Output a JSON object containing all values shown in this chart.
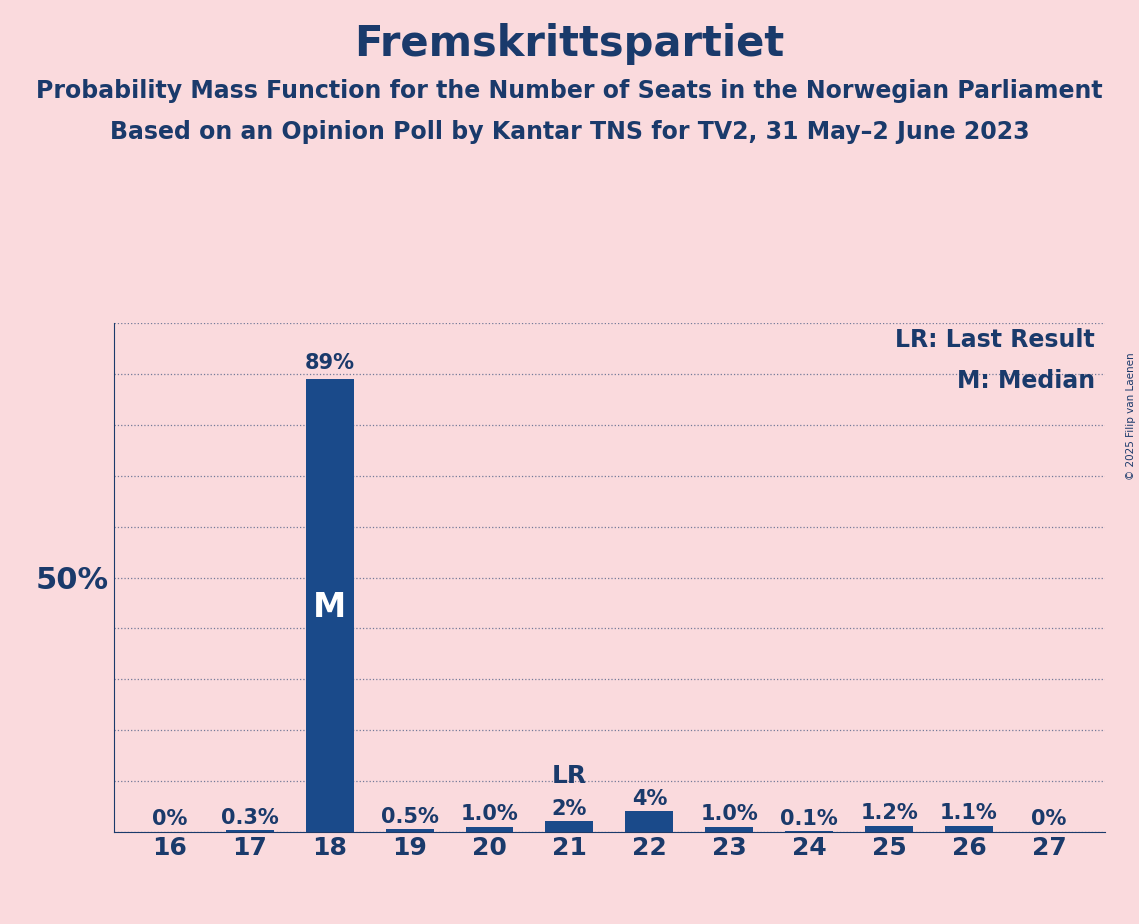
{
  "title": "Fremskrittspartiet",
  "subtitle1": "Probability Mass Function for the Number of Seats in the Norwegian Parliament",
  "subtitle2": "Based on an Opinion Poll by Kantar TNS for TV2, 31 May–2 June 2023",
  "copyright": "© 2025 Filip van Laenen",
  "categories": [
    16,
    17,
    18,
    19,
    20,
    21,
    22,
    23,
    24,
    25,
    26,
    27
  ],
  "values": [
    0.0,
    0.3,
    89.0,
    0.5,
    1.0,
    2.0,
    4.0,
    1.0,
    0.1,
    1.2,
    1.1,
    0.0
  ],
  "bar_labels": [
    "0%",
    "0.3%",
    "89%",
    "0.5%",
    "1.0%",
    "2%",
    "4%",
    "1.0%",
    "0.1%",
    "1.2%",
    "1.1%",
    "0%"
  ],
  "bar_color": "#1a4a8a",
  "background_color": "#fadadd",
  "text_color": "#1a3a6b",
  "ylim": [
    0,
    100
  ],
  "yticks": [
    0,
    10,
    20,
    30,
    40,
    50,
    60,
    70,
    80,
    90,
    100
  ],
  "ylabel_50": "50%",
  "median_seat": 18,
  "last_result_seat": 21,
  "legend_lr": "LR: Last Result",
  "legend_m": "M: Median",
  "title_fontsize": 30,
  "subtitle_fontsize": 17,
  "tick_fontsize": 18,
  "bar_label_fontsize": 15,
  "annotation_fontsize": 18,
  "legend_fontsize": 17,
  "ylabel_fontsize": 22
}
